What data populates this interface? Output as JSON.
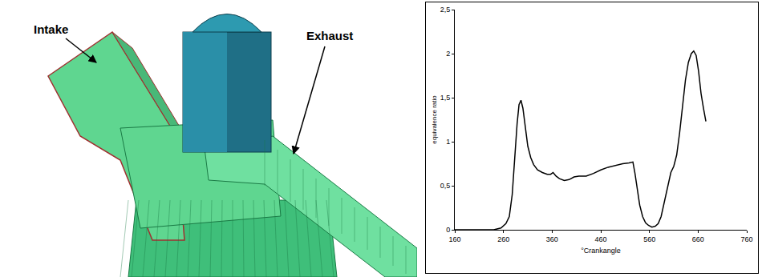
{
  "chart_data": {
    "type": "line",
    "x_label": "°Crankangle",
    "y_label": "equivalence ratio",
    "x": [
      160,
      200,
      240,
      255,
      265,
      272,
      278,
      283,
      288,
      292,
      296,
      300,
      305,
      310,
      316,
      322,
      330,
      340,
      350,
      357,
      362,
      368,
      375,
      385,
      395,
      405,
      415,
      430,
      445,
      460,
      475,
      490,
      505,
      518,
      526,
      530,
      535,
      540,
      546,
      552,
      558,
      565,
      572,
      578,
      584,
      590,
      597,
      604,
      610,
      616,
      622,
      628,
      634,
      640,
      646,
      651,
      656,
      661,
      666,
      671,
      676
    ],
    "values": [
      0,
      0,
      0,
      0.02,
      0.07,
      0.15,
      0.4,
      0.8,
      1.2,
      1.42,
      1.47,
      1.38,
      1.15,
      0.95,
      0.82,
      0.74,
      0.68,
      0.65,
      0.63,
      0.63,
      0.65,
      0.61,
      0.58,
      0.56,
      0.57,
      0.6,
      0.61,
      0.61,
      0.64,
      0.68,
      0.71,
      0.73,
      0.75,
      0.76,
      0.77,
      0.65,
      0.45,
      0.28,
      0.15,
      0.08,
      0.05,
      0.03,
      0.04,
      0.07,
      0.15,
      0.3,
      0.5,
      0.65,
      0.72,
      0.85,
      1.1,
      1.4,
      1.7,
      1.9,
      2.0,
      2.03,
      1.98,
      1.8,
      1.55,
      1.38,
      1.23
    ],
    "color": "#000000",
    "xlim": [
      160,
      760
    ],
    "xticks": [
      160,
      260,
      360,
      460,
      560,
      660,
      760
    ],
    "ylim": [
      0,
      2.5
    ],
    "yticks": [
      0,
      {
        "value": 0.5,
        "label": "0,5"
      },
      1,
      {
        "value": 1.5,
        "label": "1,5"
      },
      2,
      {
        "value": 2.5,
        "label": "2,5"
      }
    ],
    "grid": false
  },
  "illustration": {
    "labels": {
      "intake": "Intake",
      "exhaust": "Exhaust"
    }
  }
}
